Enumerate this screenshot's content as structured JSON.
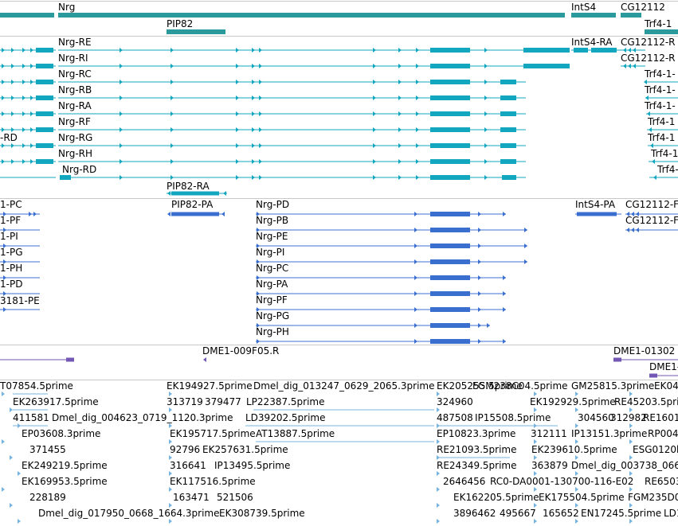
{
  "colors": {
    "gene": "#2a9a9c",
    "transcript": "#13a6bf",
    "protein": "#3a6fd0",
    "oligo": "#7257b5",
    "est": "#77b3df",
    "separator": "#c9c9c9"
  },
  "gene_track": {
    "labels": [
      "Nrg",
      "PIP82",
      "IntS4",
      "CG12112",
      "Trf4-1"
    ]
  },
  "transcript_track": {
    "labels": [
      "Nrg-RE",
      "Nrg-RI",
      "Nrg-RC",
      "Nrg-RB",
      "Nrg-RA",
      "Nrg-RF",
      "Nrg-RG",
      "Nrg-RH",
      "Nrg-RD",
      "-RD",
      "PIP82-RA",
      "IntS4-RA",
      "CG12112-R",
      "CG12112-R",
      "Trf4-1-",
      "Trf4-1-",
      "Trf4-1-",
      "Trf4-1",
      "Trf4-1",
      "Trf4-1",
      "Trf4-1"
    ]
  },
  "protein_track": {
    "labels": [
      "1-PC",
      "1-PF",
      "1-PI",
      "1-PG",
      "1-PH",
      "1-PD",
      "3181-PE",
      "PIP82-PA",
      "Nrg-PD",
      "Nrg-PB",
      "Nrg-PE",
      "Nrg-PI",
      "Nrg-PC",
      "Nrg-PA",
      "Nrg-PF",
      "Nrg-PG",
      "Nrg-PH",
      "IntS4-PA",
      "CG12112-F",
      "CG12112-F"
    ]
  },
  "oligo_track": {
    "labels": [
      "DME1-009F05.R",
      "DME1-01302",
      "DME1-"
    ]
  },
  "est_track": {
    "labels": [
      "T07854.5prime",
      "EK194927.5prime",
      "EK205255.5prime",
      "FGM238C04.5prime",
      "GM25815.3prime",
      "EK04",
      "EK263917.5prime",
      "313719",
      "379477",
      "Dmel_dig_013247_0629_2065.3prime",
      "324960",
      "411581",
      "Dmel_dig_004623_0719_1120.3prime",
      "LP22387.5prime",
      "EK192929.5prime",
      "RE45203.5prime",
      "EP03608.3prime",
      "LD39202.5prime",
      "487508",
      "IP15508.5prime",
      "304560",
      "312982",
      "RE16013.",
      "371455",
      "EK195717.5prime",
      "AT13887.5prime",
      "EP10823.3prime",
      "312111",
      "IP13151.3prime",
      "RP004",
      "EK249219.5prime",
      "92796",
      "EK257631.5prime",
      "RE21093.5prime",
      "EK239610.5prime",
      "ESG0120b.R",
      "316641",
      "IP13495.5prime",
      "RE24349.5prime",
      "363879",
      "Dmel_dig_003738_066",
      "EK169953.5prime",
      "EK117516.5prime",
      "2646456",
      "RC0-DA0001-130700-116-E02",
      "RE6503",
      "228189",
      "163471",
      "521506",
      "EK162205.5prime",
      "EK175504.5prime",
      "FGM235D0",
      "Dmel_dig_017950_0668_1664.3prime",
      "EK308739.5prime",
      "3896462",
      "495667",
      "165652",
      "EN17245.5prime",
      "LD1"
    ]
  }
}
